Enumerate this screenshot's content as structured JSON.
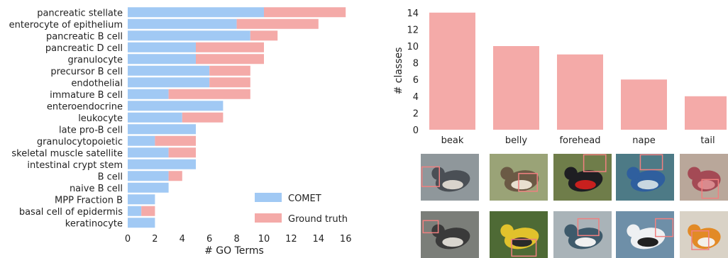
{
  "chart_data": [
    {
      "type": "bar",
      "orientation": "horizontal",
      "stacked": true,
      "categories": [
        "pancreatic stellate",
        "enterocyte of epithelium",
        "pancreatic B cell",
        "pancreatic D cell",
        "granulocyte",
        "precursor B cell",
        "endothelial",
        "immature B cell",
        "enteroendocrine",
        "leukocyte",
        "late pro-B cell",
        "granulocytopoietic",
        "skeletal muscle satellite",
        "intestinal crypt stem",
        "B cell",
        "naive B cell",
        "MPP Fraction B",
        "basal cell of epidermis",
        "keratinocyte"
      ],
      "series": [
        {
          "name": "COMET",
          "color": "#a1c9f4",
          "values": [
            10,
            8,
            9,
            5,
            5,
            6,
            6,
            3,
            7,
            4,
            5,
            2,
            3,
            5,
            3,
            3,
            2,
            1,
            2
          ]
        },
        {
          "name": "Ground truth",
          "color": "#f4aaa8",
          "values": [
            6,
            6,
            2,
            5,
            5,
            3,
            3,
            6,
            0,
            3,
            0,
            3,
            2,
            0,
            1,
            0,
            0,
            1,
            0
          ]
        }
      ],
      "xlabel": "# GO Terms",
      "ylabel": "",
      "xlim": [
        0,
        16.5
      ],
      "xticks": [
        0,
        2,
        4,
        6,
        8,
        10,
        12,
        14,
        16
      ],
      "legend": "bottom-right",
      "grid": false
    },
    {
      "type": "bar",
      "categories": [
        "beak",
        "belly",
        "forehead",
        "nape",
        "tail"
      ],
      "values": [
        14,
        10,
        9,
        6,
        4
      ],
      "color": "#f4aaa8",
      "xlabel": "",
      "ylabel": "# classes",
      "ylim": [
        0,
        14.5
      ],
      "yticks": [
        0,
        2,
        4,
        6,
        8,
        10,
        12,
        14
      ],
      "grid": false
    }
  ],
  "thumbnails": [
    {
      "row": 0,
      "col": 0,
      "bird": "dark-grey-bird-on-rock",
      "bg": "#8f979b",
      "body": "#4a4f55",
      "accent": "#d9d4cc"
    },
    {
      "row": 0,
      "col": 1,
      "bird": "streaked-sparrow",
      "bg": "#9aa377",
      "body": "#6b5a45",
      "accent": "#e8e0d0"
    },
    {
      "row": 0,
      "col": 2,
      "bird": "red-headed-woodpecker",
      "bg": "#6f7d4a",
      "body": "#1e1e22",
      "accent": "#c8201e"
    },
    {
      "row": 0,
      "col": 3,
      "bird": "bluebird-on-branch",
      "bg": "#4d7a86",
      "body": "#2f5f9e",
      "accent": "#c9d7e0"
    },
    {
      "row": 0,
      "col": 4,
      "bird": "red-finch",
      "bg": "#b9a79a",
      "body": "#a44a55",
      "accent": "#d98a8e"
    },
    {
      "row": 1,
      "col": 0,
      "bird": "grey-shorebird",
      "bg": "#7b7e79",
      "body": "#3a3a3a",
      "accent": "#d9d6cf"
    },
    {
      "row": 1,
      "col": 1,
      "bird": "yellow-warbler",
      "bg": "#4e6a35",
      "body": "#e1c22c",
      "accent": "#2a2a2a"
    },
    {
      "row": 1,
      "col": 2,
      "bird": "kingfisher",
      "bg": "#a9b3b8",
      "body": "#3e5a6b",
      "accent": "#f0f0f0"
    },
    {
      "row": 1,
      "col": 3,
      "bird": "white-tern",
      "bg": "#6e8fa8",
      "body": "#eef0f2",
      "accent": "#202020"
    },
    {
      "row": 1,
      "col": 4,
      "bird": "orange-bird-wings",
      "bg": "#d9d2c6",
      "body": "#e28a26",
      "accent": "#f4f0ea"
    }
  ]
}
